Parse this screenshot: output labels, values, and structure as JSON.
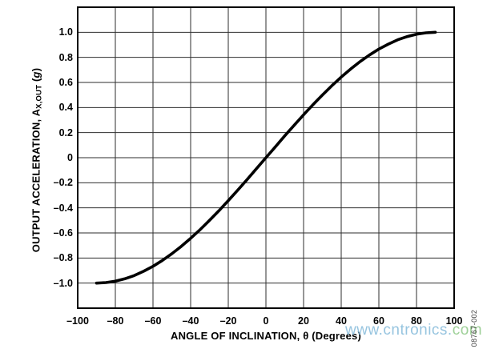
{
  "figure": {
    "code": "08767-002",
    "watermark": {
      "part1": "www.cntronics.",
      "part2": "com",
      "color1": "#7db6d8",
      "color2": "#87c57f"
    }
  },
  "chart_data": {
    "type": "line",
    "title": "",
    "xlabel": "ANGLE OF INCLINATION, θ (Degrees)",
    "ylabel": {
      "prefix": "OUTPUT ACCELERATION, A",
      "sub": "X,OUT",
      "unit_open": " (",
      "unit": "g",
      "unit_close": ")"
    },
    "xlim": [
      -100,
      100
    ],
    "ylim": [
      -1.2,
      1.2
    ],
    "grid": true,
    "legend": "none",
    "colors": {
      "line": "#000000",
      "grid": "#2e2e2e",
      "border": "#000000",
      "text": "#000000"
    },
    "x_ticks": [
      {
        "v": -100,
        "label": "–100"
      },
      {
        "v": -80,
        "label": "–80"
      },
      {
        "v": -60,
        "label": "–60"
      },
      {
        "v": -40,
        "label": "–40"
      },
      {
        "v": -20,
        "label": "–20"
      },
      {
        "v": 0,
        "label": "0"
      },
      {
        "v": 20,
        "label": "20"
      },
      {
        "v": 40,
        "label": "40"
      },
      {
        "v": 60,
        "label": "60"
      },
      {
        "v": 80,
        "label": "80"
      },
      {
        "v": 100,
        "label": "100"
      }
    ],
    "y_ticks": [
      {
        "v": 1.0,
        "label": "1.0"
      },
      {
        "v": 0.8,
        "label": "0.8"
      },
      {
        "v": 0.6,
        "label": "0.6"
      },
      {
        "v": 0.4,
        "label": "0.4"
      },
      {
        "v": 0.2,
        "label": "0.2"
      },
      {
        "v": 0,
        "label": "0"
      },
      {
        "v": -0.2,
        "label": "–0.2"
      },
      {
        "v": -0.4,
        "label": "–0.4"
      },
      {
        "v": -0.6,
        "label": "–0.6"
      },
      {
        "v": -0.8,
        "label": "–0.8"
      },
      {
        "v": -1.0,
        "label": "–1.0"
      }
    ],
    "series": [
      {
        "x": [
          -90,
          -85,
          -80,
          -75,
          -70,
          -65,
          -60,
          -55,
          -50,
          -45,
          -40,
          -35,
          -30,
          -25,
          -20,
          -15,
          -10,
          -5,
          0,
          5,
          10,
          15,
          20,
          25,
          30,
          35,
          40,
          45,
          50,
          55,
          60,
          65,
          70,
          75,
          80,
          85,
          90
        ],
        "y": [
          -1.0,
          -0.996,
          -0.985,
          -0.966,
          -0.94,
          -0.906,
          -0.866,
          -0.819,
          -0.766,
          -0.707,
          -0.643,
          -0.574,
          -0.5,
          -0.423,
          -0.342,
          -0.259,
          -0.174,
          -0.087,
          0,
          0.087,
          0.174,
          0.259,
          0.342,
          0.423,
          0.5,
          0.574,
          0.643,
          0.707,
          0.766,
          0.819,
          0.866,
          0.906,
          0.94,
          0.966,
          0.985,
          0.996,
          1.0
        ]
      }
    ]
  }
}
